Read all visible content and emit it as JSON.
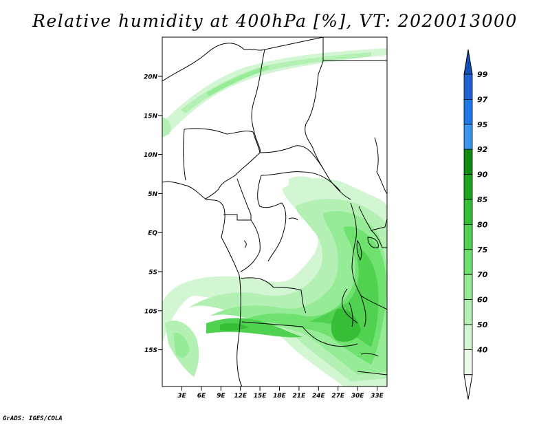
{
  "title": "Relative humidity at 400hPa [%], VT: 2020013000",
  "credit": "GrADS: IGES/COLA",
  "map": {
    "lat_ticks": [
      "20N",
      "15N",
      "10N",
      "5N",
      "EQ",
      "5S",
      "10S",
      "15S"
    ],
    "lon_ticks": [
      "3E",
      "6E",
      "9E",
      "12E",
      "15E",
      "18E",
      "21E",
      "24E",
      "27E",
      "30E",
      "33E"
    ]
  },
  "colorbar": {
    "labels": [
      "99",
      "97",
      "95",
      "92",
      "90",
      "85",
      "80",
      "75",
      "70",
      "60",
      "50",
      "40"
    ],
    "colors": [
      "#1e64d2",
      "#1e78e6",
      "#3c96f0",
      "#0f8c0f",
      "#1ea51e",
      "#37be37",
      "#50d250",
      "#6ee16e",
      "#96eb96",
      "#b4f0b4",
      "#d2f5d2",
      "#ebfaeb"
    ],
    "top_arrow_color": "#1450b4"
  }
}
